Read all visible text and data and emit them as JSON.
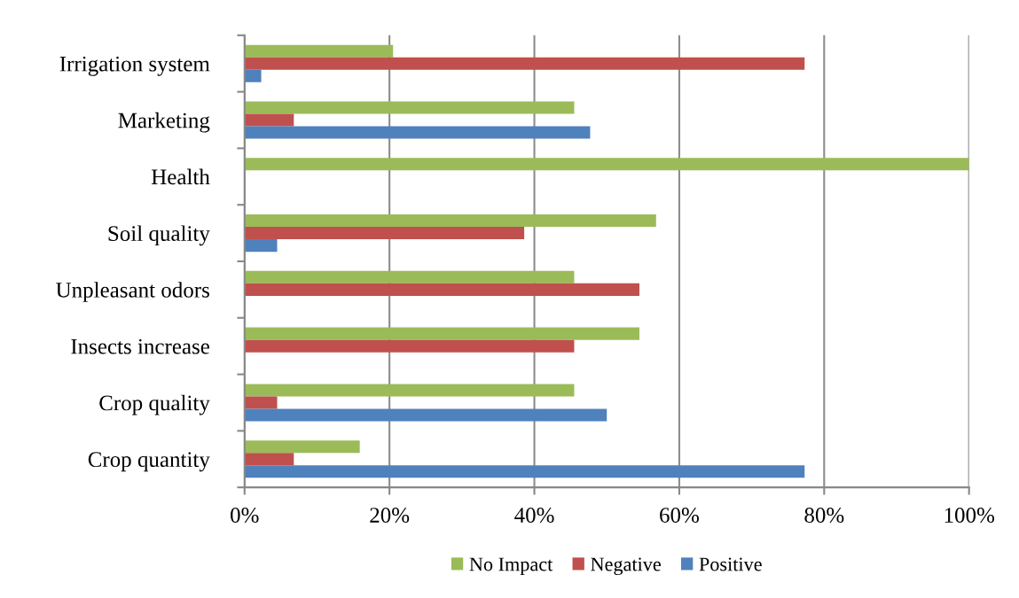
{
  "chart_data": {
    "type": "bar",
    "orientation": "horizontal",
    "categories": [
      "Irrigation system",
      "Marketing",
      "Health",
      "Soil quality",
      "Unpleasant odors",
      "Insects increase",
      "Crop quality",
      "Crop quantity"
    ],
    "series": [
      {
        "name": "No Impact",
        "color": "#9bbb59",
        "values": [
          20.5,
          45.5,
          100,
          56.8,
          45.5,
          54.5,
          45.5,
          15.9
        ]
      },
      {
        "name": "Negative",
        "color": "#c0504d",
        "values": [
          77.3,
          6.8,
          0,
          38.6,
          54.5,
          45.5,
          4.5,
          6.8
        ]
      },
      {
        "name": "Positive",
        "color": "#4f81bd",
        "values": [
          2.3,
          47.7,
          0,
          4.5,
          0,
          0,
          50,
          77.3
        ]
      }
    ],
    "xlim": [
      0,
      100
    ],
    "xticks": [
      {
        "value": 0,
        "label": "0%"
      },
      {
        "value": 20,
        "label": "20%"
      },
      {
        "value": 40,
        "label": "40%"
      },
      {
        "value": 60,
        "label": "60%"
      },
      {
        "value": 80,
        "label": "80%"
      },
      {
        "value": 100,
        "label": "100%"
      }
    ],
    "grid": "x",
    "legend": "bottom"
  }
}
